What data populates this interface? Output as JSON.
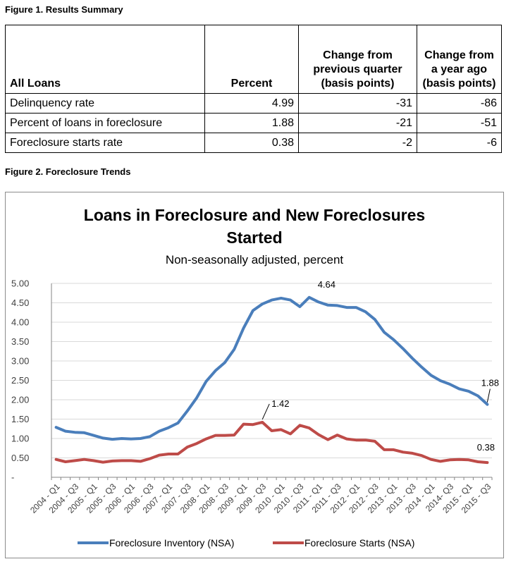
{
  "figure1": {
    "caption": "Figure 1. Results Summary",
    "headers": [
      "All Loans",
      "Percent",
      "Change from previous quarter (basis points)",
      "Change from a year ago (basis points)"
    ],
    "rows": [
      {
        "label": "Delinquency rate",
        "percent": "4.99",
        "qoq": "-31",
        "yoy": "-86"
      },
      {
        "label": "Percent of loans in foreclosure",
        "percent": "1.88",
        "qoq": "-21",
        "yoy": "-51"
      },
      {
        "label": "Foreclosure starts rate",
        "percent": "0.38",
        "qoq": "-2",
        "yoy": "-6"
      }
    ]
  },
  "figure2": {
    "caption": "Figure 2. Foreclosure Trends"
  },
  "chart_data": {
    "type": "line",
    "title": "Loans in Foreclosure and New Foreclosures Started",
    "title_lines": [
      "Loans in Foreclosure and New Foreclosures",
      "Started"
    ],
    "subtitle": "Non-seasonally adjusted, percent",
    "xlabel": "",
    "ylabel": "",
    "ylim": [
      0,
      5
    ],
    "y_ticks": [
      "-",
      "0.50",
      "1.00",
      "1.50",
      "2.00",
      "2.50",
      "3.00",
      "3.50",
      "4.00",
      "4.50",
      "5.00"
    ],
    "y_tick_values": [
      0,
      0.5,
      1,
      1.5,
      2,
      2.5,
      3,
      3.5,
      4,
      4.5,
      5
    ],
    "x": [
      "2004 - Q1",
      "2004 - Q2",
      "2004 - Q3",
      "2004 - Q4",
      "2005 - Q1",
      "2005 - Q2",
      "2005 - Q3",
      "2005 - Q4",
      "2006 - Q1",
      "2006 - Q2",
      "2006 - Q3",
      "2006 - Q4",
      "2007 - Q1",
      "2007 - Q2",
      "2007 - Q3",
      "2007 - Q4",
      "2008 - Q1",
      "2008 - Q2",
      "2008 - Q3",
      "2008 - Q4",
      "2009 - Q1",
      "2009 - Q2",
      "2009 - Q3",
      "2009 - Q4",
      "2010 - Q1",
      "2010 - Q2",
      "2010 - Q3",
      "2010 - Q4",
      "2011 - Q1",
      "2011 - Q2",
      "2011 - Q3",
      "2011 - Q4",
      "2012 - Q1",
      "2012 - Q2",
      "2012 - Q3",
      "2012 - Q4",
      "2013 - Q1",
      "2013 - Q2",
      "2013 - Q3",
      "2013 - Q4",
      "2014 - Q1",
      "2014 - Q2",
      "2014- Q3",
      "2014 - Q4",
      "2015 - Q1",
      "2015 - Q2",
      "2015 - Q3"
    ],
    "x_tick_labels": [
      "2004 - Q1",
      "2004 - Q3",
      "2005 - Q1",
      "2005 - Q3",
      "2006 - Q1",
      "2006 - Q3",
      "2007 - Q1",
      "2007 - Q3",
      "2008 - Q1",
      "2008 - Q3",
      "2009 - Q1",
      "2009 - Q3",
      "2010 - Q1",
      "2010 - Q3",
      "2011 - Q1",
      "2011 - Q3",
      "2012 - Q1",
      "2012 - Q3",
      "2013 - Q1",
      "2013 - Q3",
      "2014 - Q1",
      "2014- Q3",
      "2015 - Q1",
      "2015 - Q3"
    ],
    "series": [
      {
        "name": "Foreclosure Inventory (NSA)",
        "color": "#4a7ebb",
        "values": [
          1.29,
          1.19,
          1.16,
          1.15,
          1.08,
          1.01,
          0.98,
          1.0,
          0.99,
          1.0,
          1.05,
          1.19,
          1.28,
          1.4,
          1.71,
          2.05,
          2.47,
          2.75,
          2.96,
          3.3,
          3.85,
          4.3,
          4.47,
          4.57,
          4.62,
          4.57,
          4.4,
          4.64,
          4.52,
          4.44,
          4.43,
          4.38,
          4.38,
          4.27,
          4.07,
          3.74,
          3.55,
          3.32,
          3.07,
          2.84,
          2.63,
          2.49,
          2.4,
          2.28,
          2.22,
          2.1,
          1.88
        ]
      },
      {
        "name": "Foreclosure Starts (NSA)",
        "color": "#be4b48",
        "values": [
          0.46,
          0.4,
          0.43,
          0.46,
          0.43,
          0.39,
          0.42,
          0.43,
          0.43,
          0.41,
          0.48,
          0.57,
          0.6,
          0.6,
          0.78,
          0.87,
          0.99,
          1.08,
          1.08,
          1.09,
          1.37,
          1.36,
          1.42,
          1.2,
          1.23,
          1.12,
          1.34,
          1.27,
          1.1,
          0.97,
          1.09,
          0.99,
          0.96,
          0.96,
          0.93,
          0.71,
          0.71,
          0.65,
          0.62,
          0.56,
          0.46,
          0.41,
          0.45,
          0.46,
          0.45,
          0.4,
          0.38
        ]
      }
    ],
    "data_labels": [
      {
        "series": 0,
        "index": 27,
        "text": "4.64"
      },
      {
        "series": 1,
        "index": 22,
        "text": "1.42"
      },
      {
        "series": 0,
        "index": 46,
        "text": "1.88"
      },
      {
        "series": 1,
        "index": 46,
        "text": "0.38"
      }
    ],
    "legend_position": "bottom",
    "grid": true,
    "axis_color": "#868686",
    "grid_color": "#d9d9d9",
    "label_color": "#404040"
  }
}
